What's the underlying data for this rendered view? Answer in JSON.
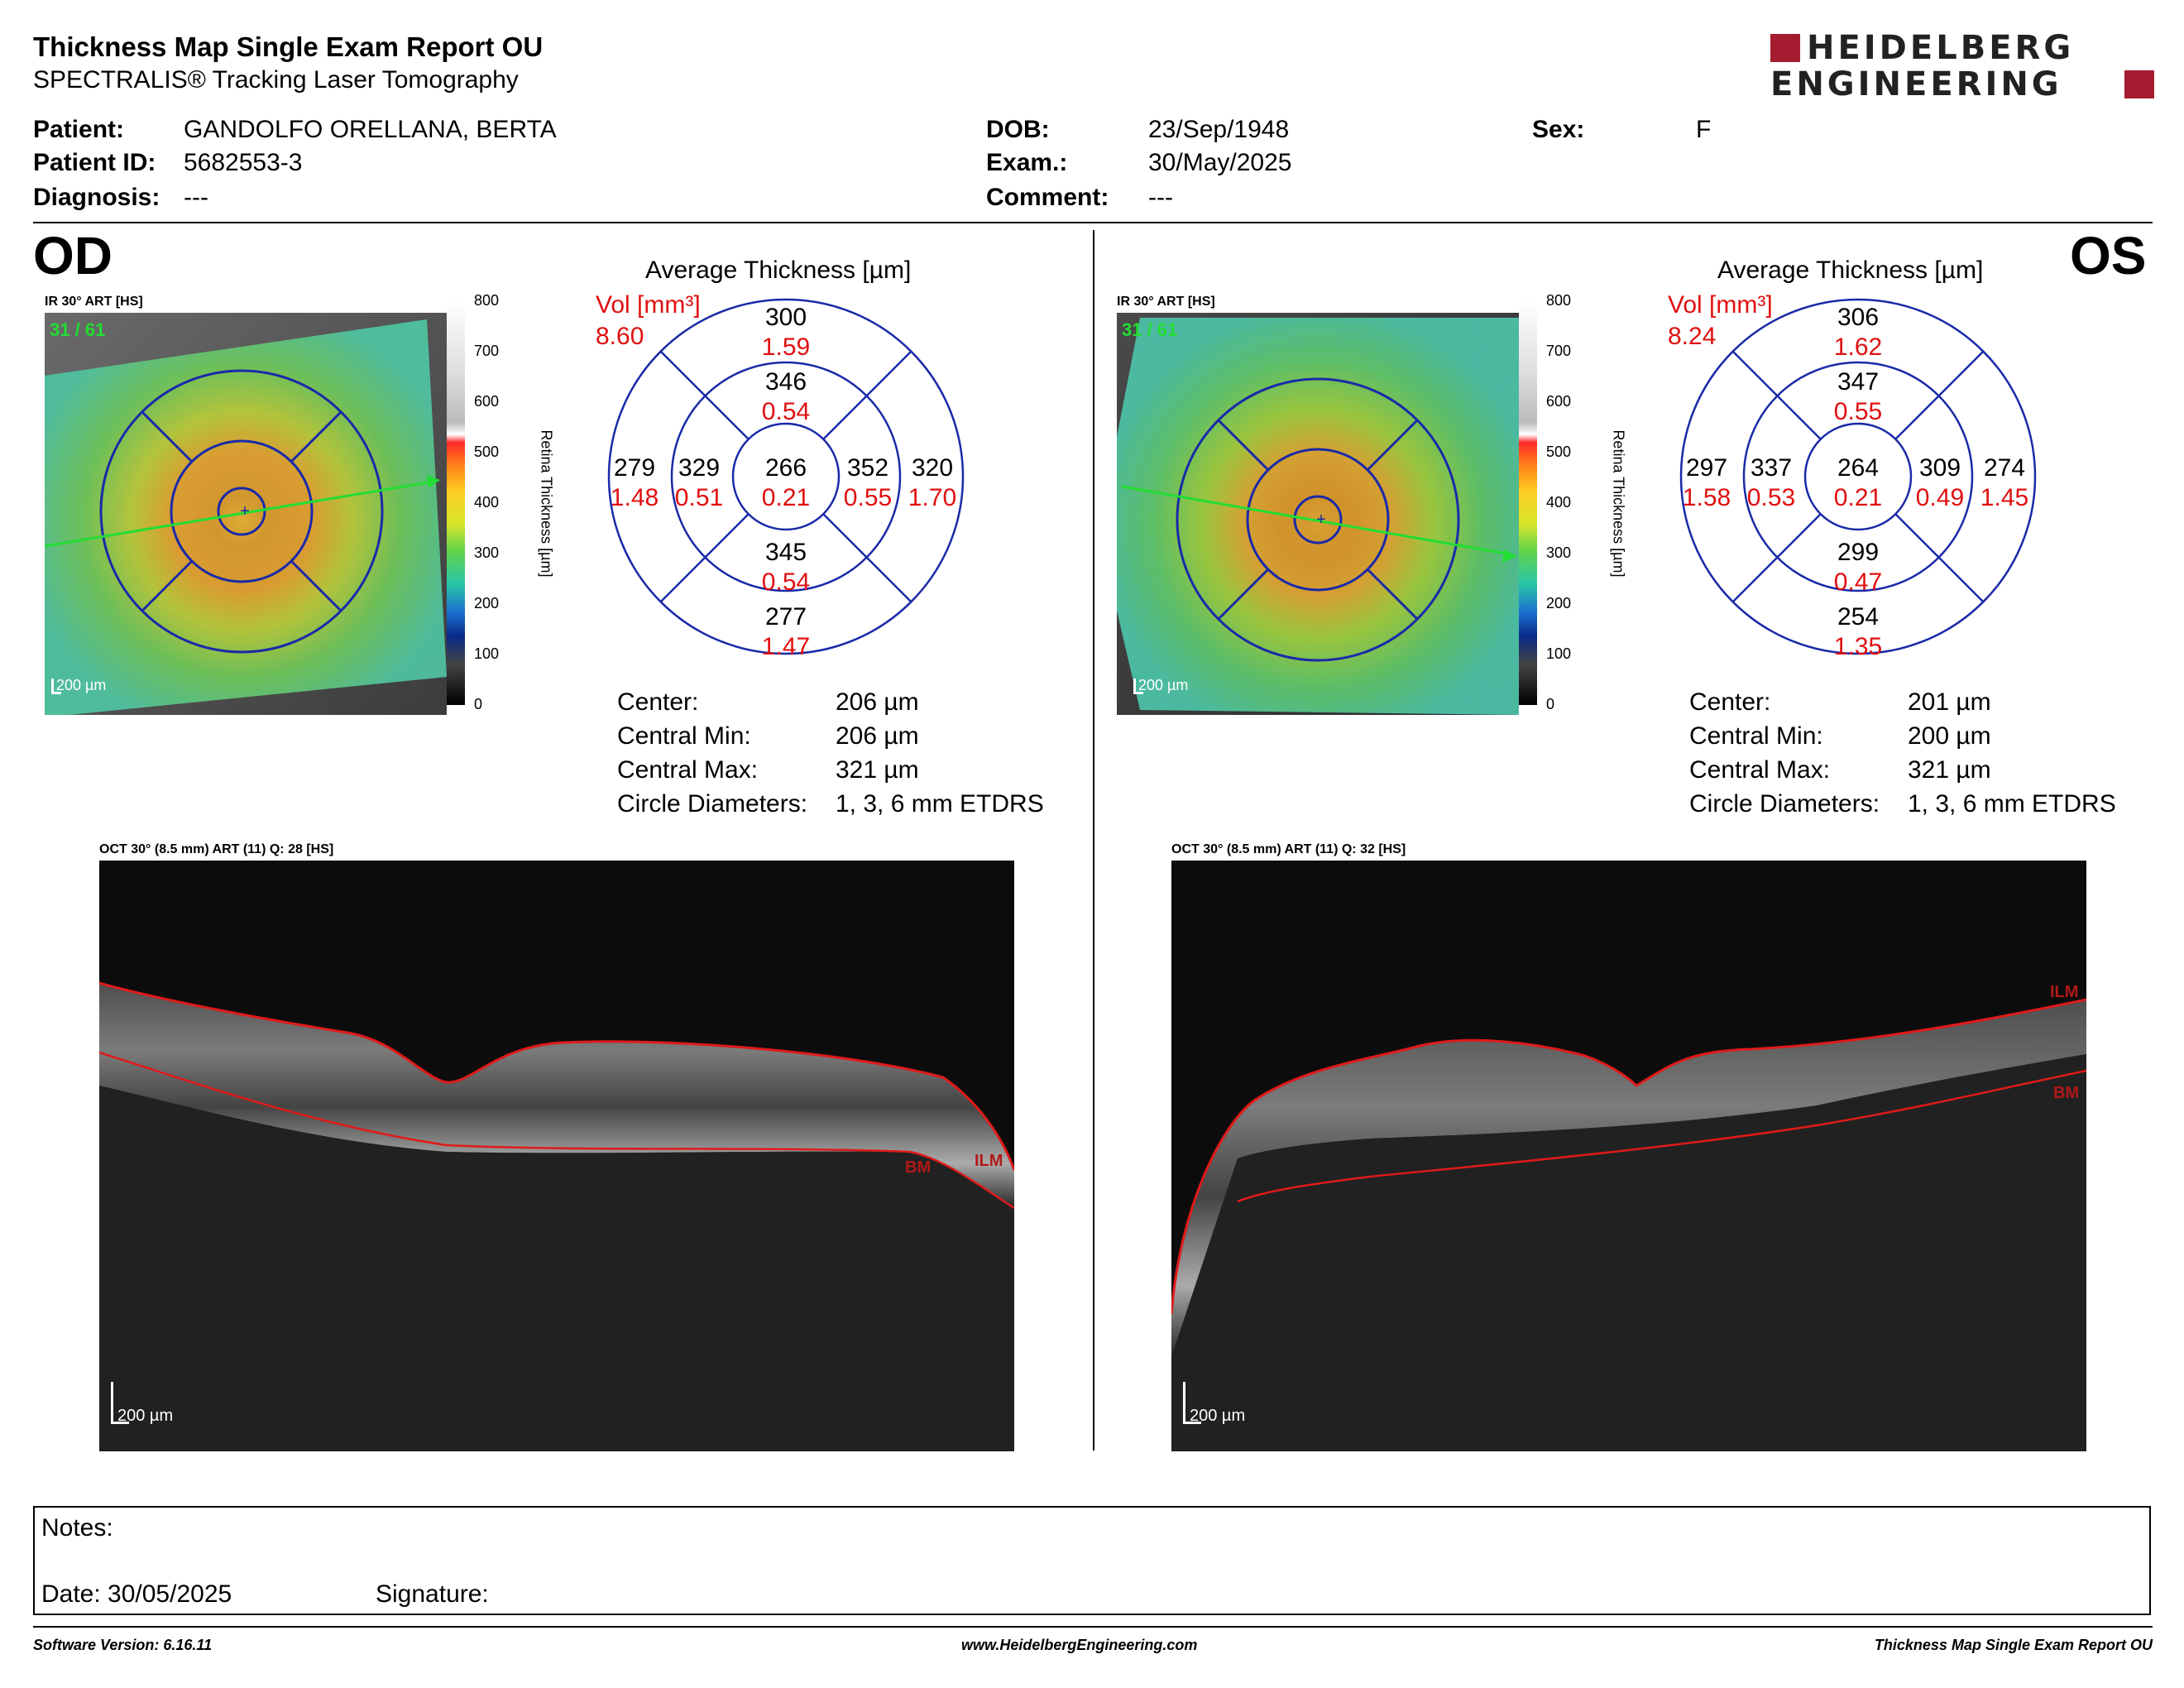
{
  "report": {
    "title": "Thickness Map Single Exam Report OU",
    "subtitle": "SPECTRALIS® Tracking Laser Tomography",
    "logo_line1": "HEIDELBERG",
    "logo_line2": "ENGINEERING",
    "brand_color": "#a51c30"
  },
  "patient": {
    "name_label": "Patient:",
    "name": "GANDOLFO ORELLANA, BERTA",
    "id_label": "Patient ID:",
    "id": "5682553-3",
    "diagnosis_label": "Diagnosis:",
    "diagnosis": "---",
    "dob_label": "DOB:",
    "dob": "23/Sep/1948",
    "exam_label": "Exam.:",
    "exam": "30/May/2025",
    "comment_label": "Comment:",
    "comment": "---",
    "sex_label": "Sex:",
    "sex": "F"
  },
  "od": {
    "eye": "OD",
    "ir_label": "IR 30° ART [HS]",
    "frame": "31 / 61",
    "scale_bar": "200 µm",
    "colorbar_title": "Retina Thickness [µm]",
    "colorbar_ticks": [
      "800",
      "700",
      "600",
      "500",
      "400",
      "300",
      "200",
      "100",
      "0"
    ],
    "avg_title": "Average Thickness [µm]",
    "vol_label": "Vol [mm³]",
    "vol_total": "8.60",
    "sectors": {
      "top_outer": [
        "300",
        "1.59"
      ],
      "top_inner": [
        "346",
        "0.54"
      ],
      "left_outer": [
        "279",
        "1.48"
      ],
      "left_inner": [
        "329",
        "0.51"
      ],
      "center": [
        "266",
        "0.21"
      ],
      "right_inner": [
        "352",
        "0.55"
      ],
      "right_outer": [
        "320",
        "1.70"
      ],
      "bottom_inner": [
        "345",
        "0.54"
      ],
      "bottom_outer": [
        "277",
        "1.47"
      ]
    },
    "stats": {
      "center_label": "Center:",
      "center": "206 µm",
      "min_label": "Central Min:",
      "min": "206 µm",
      "max_label": "Central Max:",
      "max": "321 µm",
      "diam_label": "Circle Diameters:",
      "diam": "1, 3, 6 mm ETDRS"
    },
    "oct_label": "OCT 30° (8.5 mm) ART (11) Q: 28 [HS]",
    "oct_scale": "200 µm",
    "bm_tag": "BM",
    "ilm_tag": "ILM"
  },
  "os": {
    "eye": "OS",
    "ir_label": "IR 30° ART [HS]",
    "frame": "31 / 61",
    "scale_bar": "200 µm",
    "colorbar_title": "Retina Thickness [µm]",
    "colorbar_ticks": [
      "800",
      "700",
      "600",
      "500",
      "400",
      "300",
      "200",
      "100",
      "0"
    ],
    "avg_title": "Average Thickness [µm]",
    "vol_label": "Vol [mm³]",
    "vol_total": "8.24",
    "sectors": {
      "top_outer": [
        "306",
        "1.62"
      ],
      "top_inner": [
        "347",
        "0.55"
      ],
      "left_outer": [
        "297",
        "1.58"
      ],
      "left_inner": [
        "337",
        "0.53"
      ],
      "center": [
        "264",
        "0.21"
      ],
      "right_inner": [
        "309",
        "0.49"
      ],
      "right_outer": [
        "274",
        "1.45"
      ],
      "bottom_inner": [
        "299",
        "0.47"
      ],
      "bottom_outer": [
        "254",
        "1.35"
      ]
    },
    "stats": {
      "center_label": "Center:",
      "center": "201 µm",
      "min_label": "Central Min:",
      "min": "200 µm",
      "max_label": "Central Max:",
      "max": "321 µm",
      "diam_label": "Circle Diameters:",
      "diam": "1, 3, 6 mm ETDRS"
    },
    "oct_label": "OCT 30° (8.5 mm) ART (11) Q: 32 [HS]",
    "oct_scale": "200 µm",
    "bm_tag": "BM",
    "ilm_tag": "ILM"
  },
  "notes": {
    "notes_label": "Notes:",
    "date_label": "Date: 30/05/2025",
    "signature_label": "Signature:"
  },
  "footer": {
    "software": "Software Version: 6.16.11",
    "website": "www.HeidelbergEngineering.com",
    "report_name": "Thickness Map Single Exam Report OU"
  }
}
